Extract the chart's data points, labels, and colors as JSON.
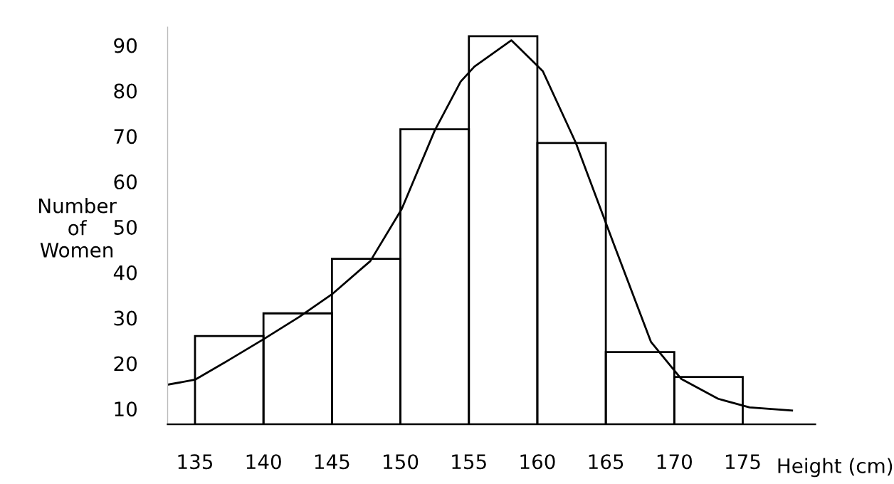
{
  "chart_data": {
    "type": "histogram",
    "xlabel": "Height (cm)",
    "ylabel": "Number\nof\nWomen",
    "bins": [
      135,
      140,
      145,
      150,
      155,
      160,
      165,
      170,
      175
    ],
    "values": [
      26,
      31,
      43,
      71.5,
      92,
      68.5,
      22.5,
      17
    ],
    "color": "#000000",
    "series": [
      {
        "type": "line",
        "color": "#000000",
        "x": [
          133,
          135,
          137.4,
          140,
          142.6,
          145,
          147.8,
          150.1,
          152.5,
          154.4,
          155.4,
          158.1,
          160.4,
          162.8,
          165.6,
          168.3,
          170.5,
          173.2,
          175.5,
          178.6
        ],
        "values": [
          15.3,
          16.4,
          20.6,
          25.3,
          30.2,
          35.2,
          42.5,
          54,
          71.2,
          82,
          85.3,
          91.1,
          84.3,
          68.6,
          46.1,
          24.7,
          16.6,
          12.2,
          10.3,
          9.6
        ]
      }
    ],
    "xlim": [
      133,
      180.3
    ],
    "ylim": [
      6.6,
      94
    ],
    "xticks": [
      135,
      140,
      145,
      150,
      155,
      160,
      165,
      170,
      175
    ],
    "yticks": [
      10,
      20,
      30,
      40,
      50,
      60,
      70,
      80,
      90
    ],
    "grid": false,
    "legend": false,
    "marker": "none",
    "line_style": "solid"
  }
}
